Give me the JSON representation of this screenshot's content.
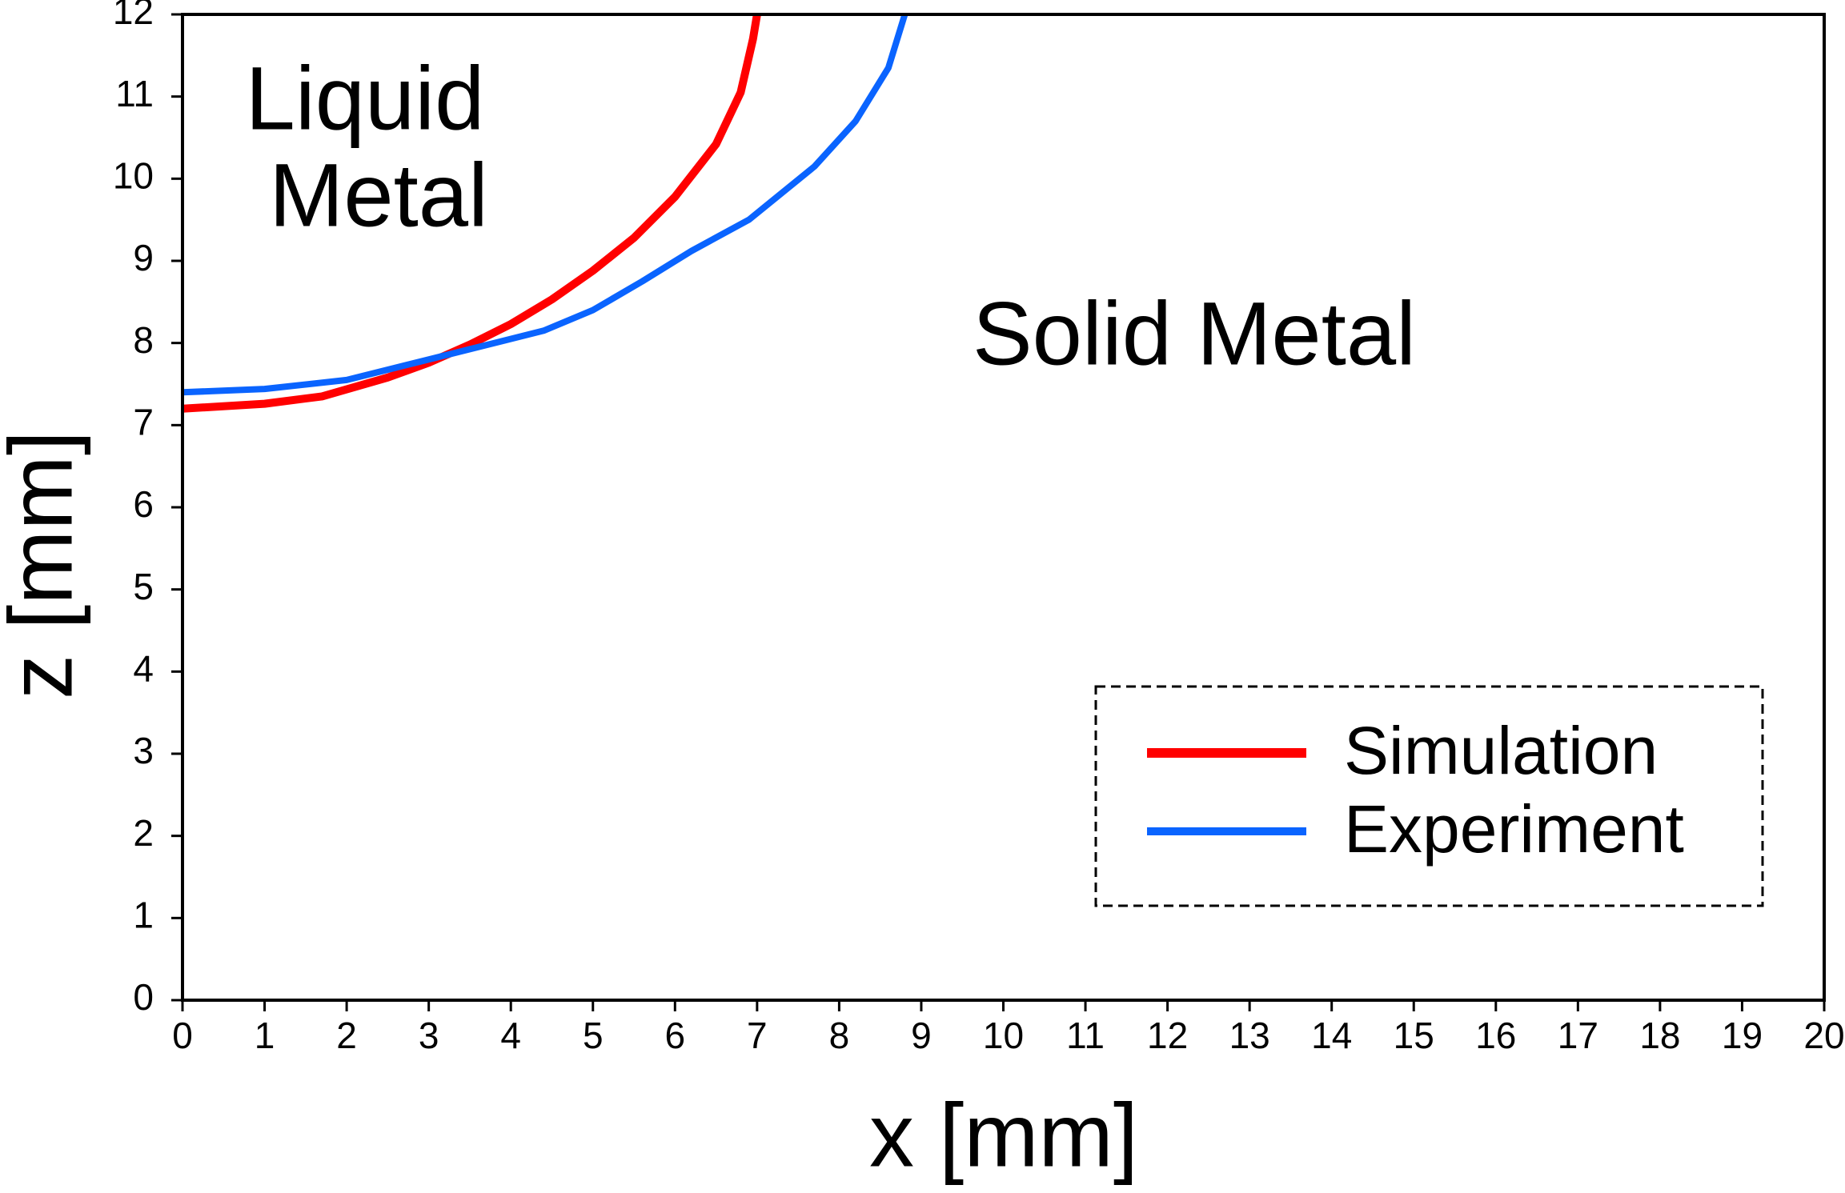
{
  "chart_data": {
    "type": "line",
    "xlabel": "x [mm]",
    "ylabel": "z [mm]",
    "xlim": [
      0,
      20
    ],
    "ylim": [
      0,
      12
    ],
    "xticks": [
      0,
      1,
      2,
      3,
      4,
      5,
      6,
      7,
      8,
      9,
      10,
      11,
      12,
      13,
      14,
      15,
      16,
      17,
      18,
      19,
      20
    ],
    "yticks": [
      0,
      1,
      2,
      3,
      4,
      5,
      6,
      7,
      8,
      9,
      10,
      11,
      12
    ],
    "annotations": [
      "Liquid",
      "Metal",
      "Solid Metal"
    ],
    "legend": "lower right",
    "series": [
      {
        "name": "Simulation",
        "color": "#ff0000",
        "x": [
          0,
          1,
          1.7,
          2.5,
          3,
          3.5,
          4,
          4.5,
          5,
          5.5,
          6,
          6.5,
          6.8,
          6.95,
          7
        ],
        "values": [
          7.2,
          7.26,
          7.35,
          7.58,
          7.76,
          7.98,
          8.23,
          8.53,
          8.88,
          9.28,
          9.78,
          10.42,
          11.05,
          11.7,
          12
        ]
      },
      {
        "name": "Experiment",
        "color": "#0a64ff",
        "x": [
          0,
          1,
          2,
          3,
          4.4,
          5,
          5.6,
          6.2,
          6.9,
          7.7,
          8.2,
          8.6,
          8.8
        ],
        "values": [
          7.4,
          7.44,
          7.55,
          7.8,
          8.15,
          8.4,
          8.75,
          9.12,
          9.5,
          10.15,
          10.7,
          11.35,
          12
        ]
      }
    ]
  }
}
